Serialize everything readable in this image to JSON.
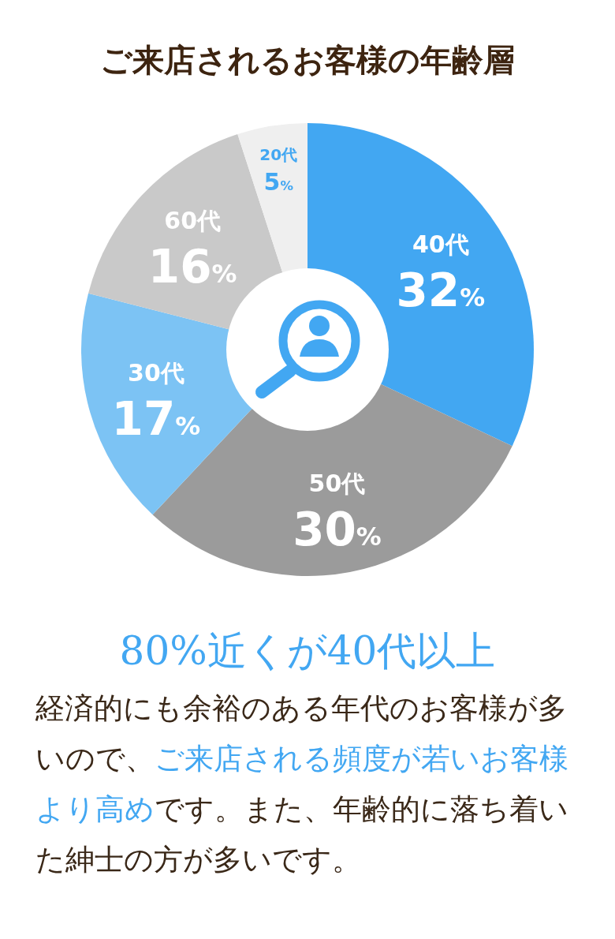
{
  "chart_data": {
    "type": "donut",
    "title": "ご来店されるお客様の年齢層",
    "categories": [
      "40代",
      "50代",
      "30代",
      "60代",
      "20代"
    ],
    "values": [
      32,
      30,
      17,
      16,
      5
    ],
    "colors": [
      "#42a7f2",
      "#9b9b9b",
      "#7cc3f4",
      "#c9c9c9",
      "#efefef"
    ],
    "value_labels": [
      "32%",
      "30%",
      "17%",
      "16%",
      "5%"
    ],
    "annotations": [
      "80%近くが40代以上",
      "経済的にも余裕のある年代のお客様が多いので、",
      "ご来店される頻度が若いお客様より高め",
      "です。また、年齢的に落ち着いた紳士の方が多いです。"
    ]
  }
}
